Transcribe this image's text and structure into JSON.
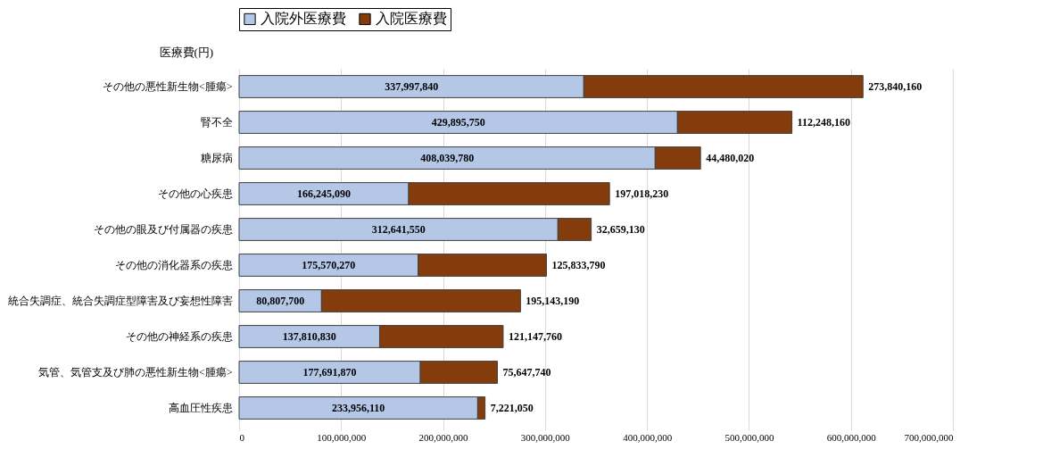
{
  "chart_data": {
    "type": "bar",
    "orientation": "horizontal",
    "stacked": true,
    "xlabel": "医療費(円)",
    "categories": [
      "その他の悪性新生物<腫瘍>",
      "腎不全",
      "糖尿病",
      "その他の心疾患",
      "その他の眼及び付属器の疾患",
      "その他の消化器系の疾患",
      "統合失調症、統合失調症型障害及び妄想性障害",
      "その他の神経系の疾患",
      "気管、気管支及び肺の悪性新生物<腫瘍>",
      "高血圧性疾患"
    ],
    "series": [
      {
        "name": "入院外医療費",
        "color": "#b4c7e7",
        "values": [
          337997840,
          429895750,
          408039780,
          166245090,
          312641550,
          175570270,
          80807700,
          137810830,
          177691870,
          233956110
        ],
        "value_labels": [
          "337,997,840",
          "429,895,750",
          "408,039,780",
          "166,245,090",
          "312,641,550",
          "175,570,270",
          "80,807,700",
          "137,810,830",
          "177,691,870",
          "233,956,110"
        ]
      },
      {
        "name": "入院医療費",
        "color": "#843c0c",
        "values": [
          273840160,
          112248160,
          44480020,
          197018230,
          32659130,
          125833790,
          195143190,
          121147760,
          75647740,
          7221050
        ],
        "value_labels": [
          "273,840,160",
          "112,248,160",
          "44,480,020",
          "197,018,230",
          "32,659,130",
          "125,833,790",
          "195,143,190",
          "121,147,760",
          "75,647,740",
          "7,221,050"
        ]
      }
    ],
    "xlim": [
      0,
      700000000
    ],
    "xticks": [
      {
        "value": 0,
        "label": "0"
      },
      {
        "value": 100000000,
        "label": "100,000,000"
      },
      {
        "value": 200000000,
        "label": "200,000,000"
      },
      {
        "value": 300000000,
        "label": "300,000,000"
      },
      {
        "value": 400000000,
        "label": "400,000,000"
      },
      {
        "value": 500000000,
        "label": "500,000,000"
      },
      {
        "value": 600000000,
        "label": "600,000,000"
      },
      {
        "value": 700000000,
        "label": "700,000,000"
      }
    ],
    "grid": "x",
    "legend": "top"
  }
}
